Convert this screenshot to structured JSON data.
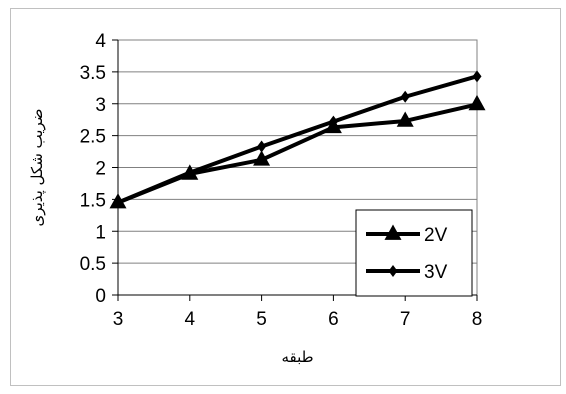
{
  "chart_data": {
    "type": "line",
    "title": "",
    "xlabel": "طبقه",
    "ylabel": "ضریب شکل پذیری",
    "x": [
      3,
      4,
      5,
      6,
      7,
      8
    ],
    "xlim": [
      3,
      8
    ],
    "ylim": [
      0,
      4
    ],
    "x_ticks": [
      "3",
      "4",
      "5",
      "6",
      "7",
      "8"
    ],
    "y_ticks": [
      "0",
      "0.5",
      "1",
      "1.5",
      "2",
      "2.5",
      "3",
      "3.5",
      "4"
    ],
    "grid": "horizontal",
    "legend": "bottom-right",
    "series": [
      {
        "name": "2V",
        "marker": "triangle",
        "values": [
          1.45,
          1.9,
          2.12,
          2.63,
          2.73,
          2.99
        ]
      },
      {
        "name": "3V",
        "marker": "diamond",
        "values": [
          1.45,
          1.92,
          2.33,
          2.72,
          3.11,
          3.43
        ]
      }
    ],
    "colors": {
      "line": "#000000",
      "grid": "#808080",
      "frame": "#c0c0c0",
      "background": "#ffffff"
    }
  }
}
